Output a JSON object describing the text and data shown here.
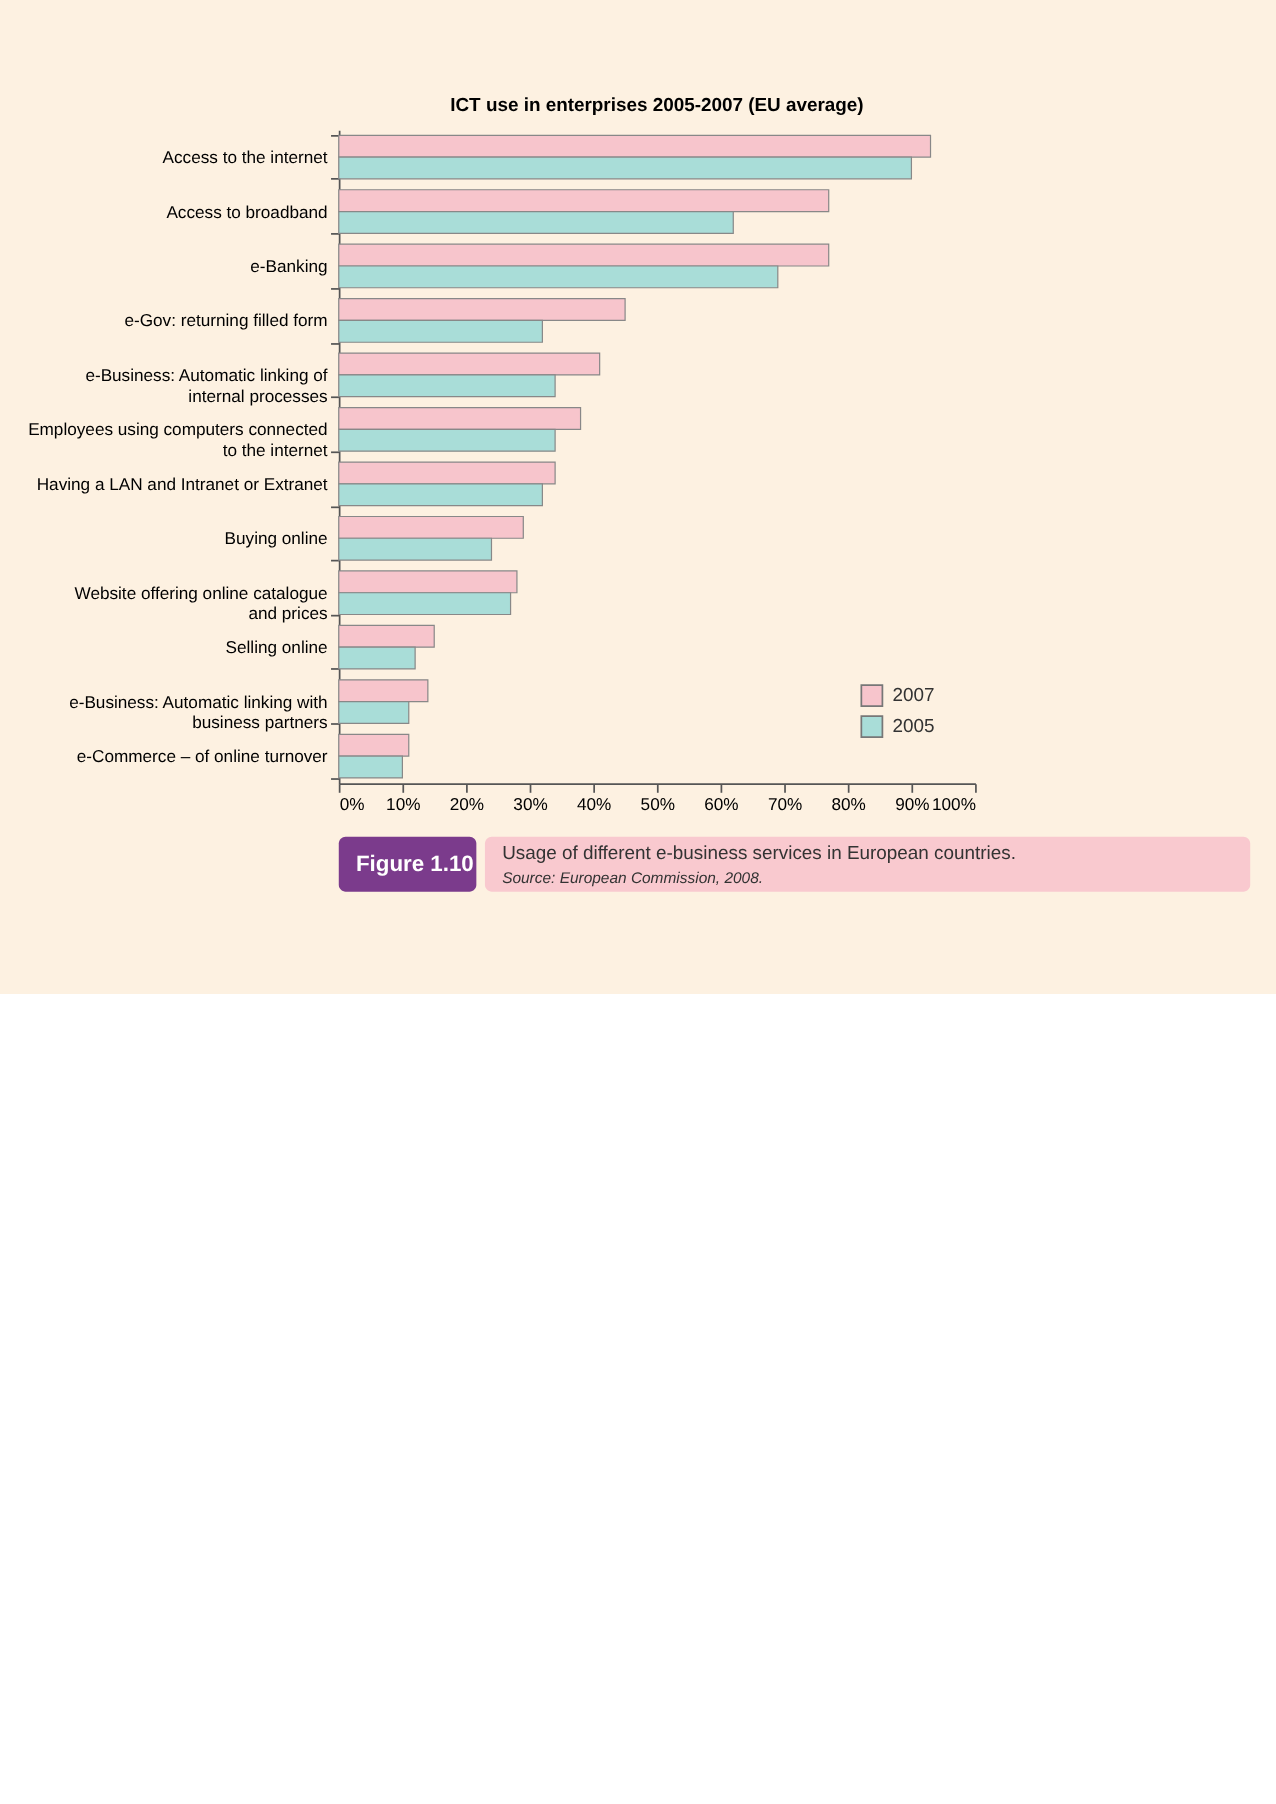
{
  "chart_data": {
    "type": "bar",
    "orientation": "horizontal",
    "title": "ICT use in enterprises 2005-2007 (EU average)",
    "categories": [
      "Access to the internet",
      "Access to broadband",
      "e-Banking",
      "e-Gov: returning filled form",
      "e-Business: Automatic linking of\ninternal processes",
      "Employees using computers connected\nto the internet",
      "Having a LAN and Intranet or Extranet",
      "Buying online",
      "Website offering online catalogue\nand prices",
      "Selling online",
      "e-Business: Automatic linking with\nbusiness partners",
      "e-Commerce – of online turnover"
    ],
    "series": [
      {
        "name": "2007",
        "color": "#f7c5cc",
        "values": [
          93,
          77,
          77,
          45,
          41,
          38,
          34,
          29,
          28,
          15,
          14,
          11
        ]
      },
      {
        "name": "2005",
        "color": "#a9ddd8",
        "values": [
          90,
          62,
          69,
          32,
          34,
          34,
          32,
          24,
          27,
          12,
          11,
          10
        ]
      }
    ],
    "xlim": [
      0,
      100
    ],
    "xticks": [
      {
        "value": 0,
        "label": "0%"
      },
      {
        "value": 10,
        "label": "10%"
      },
      {
        "value": 20,
        "label": "20%"
      },
      {
        "value": 30,
        "label": "30%"
      },
      {
        "value": 40,
        "label": "40%"
      },
      {
        "value": 50,
        "label": "50%"
      },
      {
        "value": 60,
        "label": "60%"
      },
      {
        "value": 70,
        "label": "70%"
      },
      {
        "value": 80,
        "label": "80%"
      },
      {
        "value": 90,
        "label": "90%"
      },
      {
        "value": 100,
        "label": "100%"
      }
    ],
    "grid": false,
    "legend": "bottom right",
    "annotations": [
      "Figure 1.10",
      "Usage of different e-business services in European countries.",
      "Source: European Commission, 2008."
    ]
  }
}
